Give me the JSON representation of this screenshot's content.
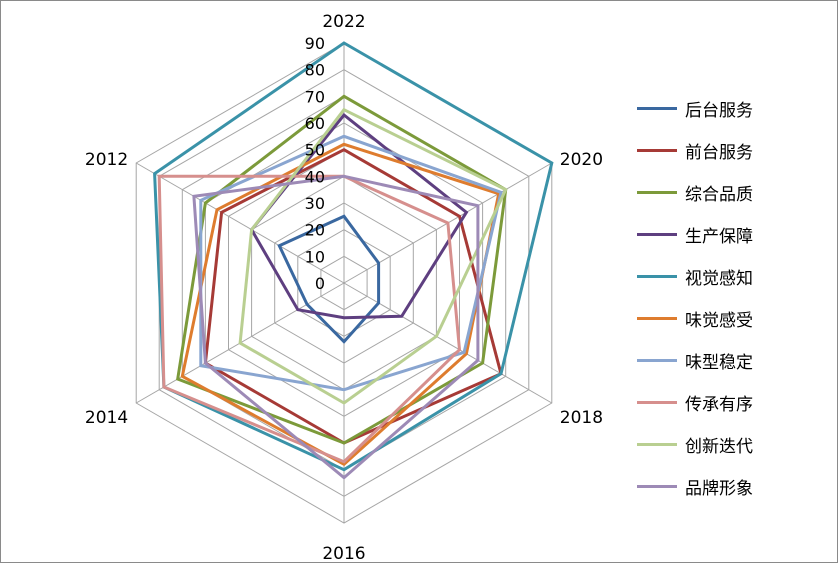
{
  "chart_data": {
    "type": "radar",
    "title": "",
    "categories": [
      "2022",
      "2020",
      "2018",
      "2016",
      "2014",
      "2012"
    ],
    "ticks": [
      0,
      10,
      20,
      30,
      40,
      50,
      60,
      70,
      80,
      90
    ],
    "rlim": [
      0,
      90
    ],
    "legend_position": "right",
    "series": [
      {
        "name": "后台服务",
        "color": "#3a68a0",
        "values": [
          25,
          15,
          15,
          22,
          16,
          28
        ]
      },
      {
        "name": "前台服务",
        "color": "#a63a36",
        "values": [
          50,
          50,
          68,
          60,
          60,
          53
        ]
      },
      {
        "name": "综合品质",
        "color": "#7c9a3a",
        "values": [
          70,
          70,
          60,
          60,
          72,
          60
        ]
      },
      {
        "name": "生产保障",
        "color": "#5e3f80",
        "values": [
          63,
          53,
          25,
          13,
          20,
          40
        ]
      },
      {
        "name": "视觉感知",
        "color": "#3a92a8",
        "values": [
          90,
          90,
          68,
          70,
          78,
          82
        ]
      },
      {
        "name": "味觉感受",
        "color": "#de7c2e",
        "values": [
          52,
          67,
          53,
          68,
          70,
          55
        ]
      },
      {
        "name": "味型稳定",
        "color": "#89a5d0",
        "values": [
          55,
          68,
          52,
          40,
          62,
          62
        ]
      },
      {
        "name": "传承有序",
        "color": "#d68f8d",
        "values": [
          40,
          45,
          50,
          67,
          78,
          80
        ]
      },
      {
        "name": "创新迭代",
        "color": "#b9cf91",
        "values": [
          65,
          70,
          40,
          45,
          45,
          40
        ]
      },
      {
        "name": "品牌形象",
        "color": "#9d8ab6",
        "values": [
          40,
          58,
          58,
          73,
          60,
          65
        ]
      }
    ]
  }
}
